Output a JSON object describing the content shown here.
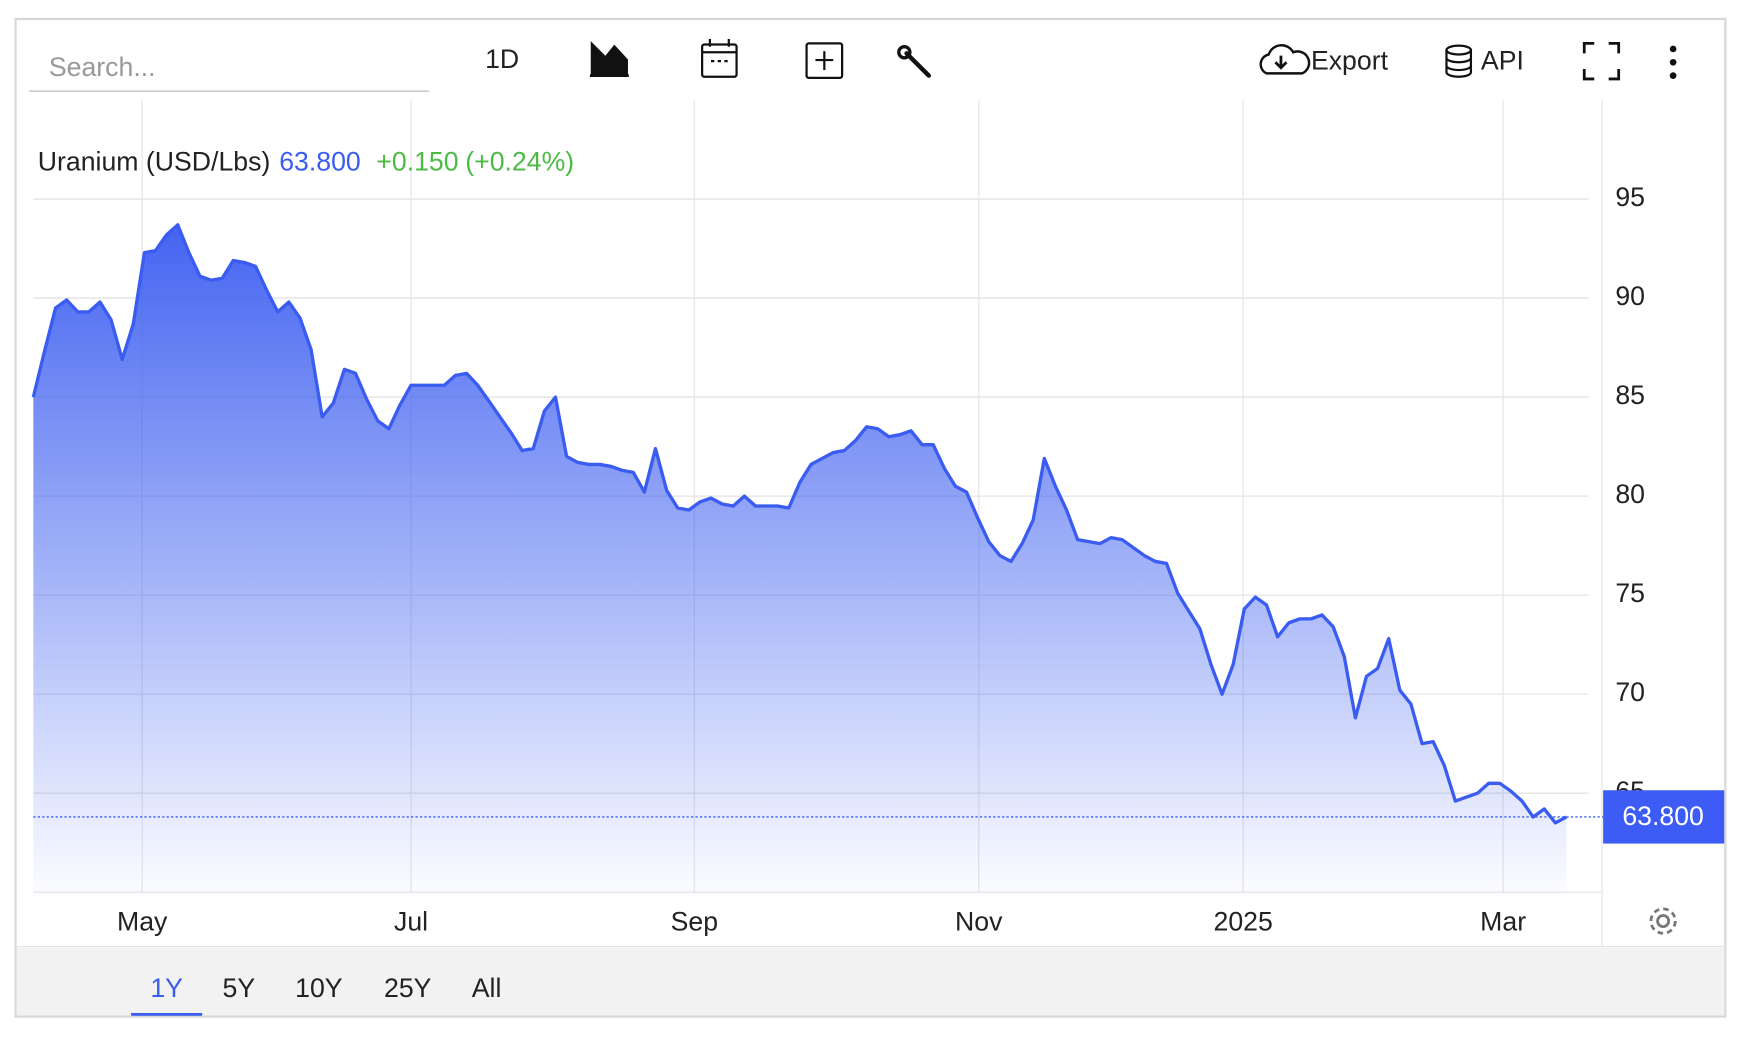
{
  "toolbar": {
    "search_placeholder": "Search...",
    "interval": "1D",
    "export": "Export",
    "api": "API"
  },
  "chart_data": {
    "type": "line",
    "title": "Uranium (USD/Lbs)",
    "price": {
      "value": 63.8,
      "label": "63.800"
    },
    "change": {
      "value": 0.15,
      "label": "+0.150"
    },
    "change_pct": {
      "value": 0.24,
      "label": "(+0.24%)"
    },
    "color": "#3a5cf0",
    "values": [
      85.0,
      87.3,
      89.5,
      89.9,
      89.3,
      89.3,
      89.8,
      88.9,
      86.9,
      88.7,
      92.3,
      92.4,
      93.2,
      93.7,
      92.3,
      91.1,
      90.9,
      91.0,
      91.9,
      91.8,
      91.6,
      90.4,
      89.3,
      89.8,
      89.0,
      87.4,
      84.0,
      84.7,
      86.4,
      86.2,
      84.9,
      83.8,
      83.4,
      84.6,
      85.6,
      85.6,
      85.6,
      85.6,
      86.1,
      86.2,
      85.6,
      84.8,
      84.0,
      83.2,
      82.3,
      82.4,
      84.3,
      85.0,
      82.0,
      81.7,
      81.6,
      81.6,
      81.5,
      81.3,
      81.2,
      80.2,
      82.4,
      80.3,
      79.4,
      79.3,
      79.7,
      79.9,
      79.6,
      79.5,
      80.0,
      79.5,
      79.5,
      79.5,
      79.4,
      80.7,
      81.6,
      81.9,
      82.2,
      82.3,
      82.8,
      83.5,
      83.4,
      83.0,
      83.1,
      83.3,
      82.6,
      82.6,
      81.4,
      80.5,
      80.2,
      78.9,
      77.7,
      77.0,
      76.7,
      77.6,
      78.8,
      81.9,
      80.5,
      79.3,
      77.8,
      77.7,
      77.6,
      77.9,
      77.8,
      77.4,
      77.0,
      76.7,
      76.6,
      75.1,
      74.2,
      73.3,
      71.5,
      70.0,
      71.5,
      74.3,
      74.9,
      74.5,
      72.9,
      73.6,
      73.8,
      73.8,
      74.0,
      73.4,
      71.9,
      68.8,
      70.9,
      71.3,
      72.8,
      70.2,
      69.5,
      67.5,
      67.6,
      66.4,
      64.6,
      64.8,
      65.0,
      65.5,
      65.5,
      65.1,
      64.6,
      63.8,
      64.2,
      63.5,
      63.8
    ],
    "xticks": [
      {
        "value": 9.8,
        "label": "May"
      },
      {
        "value": 34,
        "label": "Jul"
      },
      {
        "value": 59.5,
        "label": "Sep"
      },
      {
        "value": 85.1,
        "label": "Nov"
      },
      {
        "value": 108.9,
        "label": "2025"
      },
      {
        "value": 132.3,
        "label": "Mar"
      }
    ],
    "ylim": [
      60,
      100
    ],
    "yticks": [
      65,
      70,
      75,
      80,
      85,
      90,
      95
    ],
    "grid": true
  },
  "ranges": {
    "options": [
      "1Y",
      "5Y",
      "10Y",
      "25Y",
      "All"
    ],
    "active": 0
  }
}
